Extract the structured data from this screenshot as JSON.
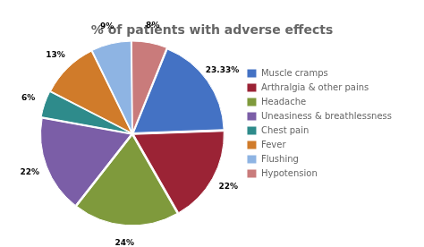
{
  "chart_data": {
    "type": "pie",
    "title": "% of patients with adverse effects",
    "categories": [
      "Muscle cramps",
      "Arthralgia & other pains",
      "Headache",
      "Uneasiness & breathlessness",
      "Chest pain",
      "Fever",
      "Flushing",
      "Hypotension"
    ],
    "values": [
      23.33,
      22,
      24,
      22,
      6,
      13,
      9,
      8
    ],
    "value_labels": [
      "23.33%",
      "22%",
      "24%",
      "22%",
      "6%",
      "13%",
      "9%",
      "8%"
    ],
    "colors": [
      "#4472C4",
      "#9B2335",
      "#7F9A3C",
      "#7B5EA7",
      "#2E8B8B",
      "#D07B2A",
      "#8EB4E3",
      "#C97B7B"
    ],
    "data_labels": true,
    "legend": "right"
  }
}
